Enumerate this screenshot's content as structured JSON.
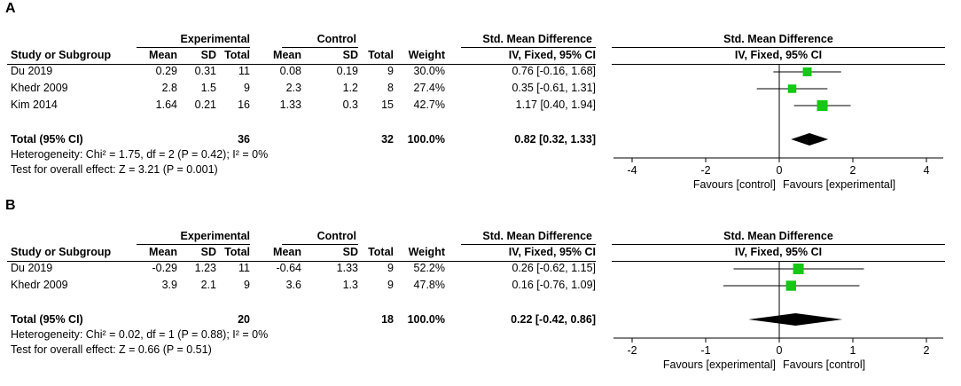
{
  "chart_data": [
    {
      "type": "forest",
      "panel_label": "A",
      "column_headers": {
        "experimental_group": "Experimental",
        "control_group": "Control",
        "effect_group": "Std. Mean Difference",
        "study": "Study or Subgroup",
        "mean_exp": "Mean",
        "sd_exp": "SD",
        "total_exp": "Total",
        "mean_ctl": "Mean",
        "sd_ctl": "SD",
        "total_ctl": "Total",
        "weight": "Weight",
        "method": "IV, Fixed, 95% CI"
      },
      "plot_header": {
        "title": "Std. Mean Difference",
        "method": "IV, Fixed, 95% CI"
      },
      "studies": [
        {
          "name": "Du 2019",
          "mean_exp": "0.29",
          "sd_exp": "0.31",
          "total_exp": "11",
          "mean_ctl": "0.08",
          "sd_ctl": "0.19",
          "total_ctl": "9",
          "weight": "30.0%",
          "ci_text": "0.76 [-0.16, 1.68]",
          "est": 0.76,
          "lo": -0.16,
          "hi": 1.68,
          "w": 30.0
        },
        {
          "name": "Khedr 2009",
          "mean_exp": "2.8",
          "sd_exp": "1.5",
          "total_exp": "9",
          "mean_ctl": "2.3",
          "sd_ctl": "1.2",
          "total_ctl": "8",
          "weight": "27.4%",
          "ci_text": "0.35 [-0.61, 1.31]",
          "est": 0.35,
          "lo": -0.61,
          "hi": 1.31,
          "w": 27.4
        },
        {
          "name": "Kim 2014",
          "mean_exp": "1.64",
          "sd_exp": "0.21",
          "total_exp": "16",
          "mean_ctl": "1.33",
          "sd_ctl": "0.3",
          "total_ctl": "15",
          "weight": "42.7%",
          "ci_text": "1.17 [0.40, 1.94]",
          "est": 1.17,
          "lo": 0.4,
          "hi": 1.94,
          "w": 42.7
        }
      ],
      "total": {
        "label": "Total (95% CI)",
        "total_exp": "36",
        "total_ctl": "32",
        "weight": "100.0%",
        "ci_text": "0.82 [0.32, 1.33]",
        "est": 0.82,
        "lo": 0.32,
        "hi": 1.33
      },
      "heterogeneity": "Heterogeneity: Chi² = 1.75, df = 2 (P = 0.42); I² = 0%",
      "overall_effect": "Test for overall effect: Z = 3.21 (P = 0.001)",
      "axis": {
        "min": -4,
        "max": 4,
        "ticks": [
          -4,
          -2,
          0,
          2,
          4
        ],
        "tick_labels": [
          "-4",
          "-2",
          "0",
          "2",
          "4"
        ],
        "favours_left": "Favours [control]",
        "favours_right": "Favours [experimental]"
      }
    },
    {
      "type": "forest",
      "panel_label": "B",
      "column_headers": {
        "experimental_group": "Experimental",
        "control_group": "Control",
        "effect_group": "Std. Mean Difference",
        "study": "Study or Subgroup",
        "mean_exp": "Mean",
        "sd_exp": "SD",
        "total_exp": "Total",
        "mean_ctl": "Mean",
        "sd_ctl": "SD",
        "total_ctl": "Total",
        "weight": "Weight",
        "method": "IV, Fixed, 95% CI"
      },
      "plot_header": {
        "title": "Std. Mean Difference",
        "method": "IV, Fixed, 95% CI"
      },
      "studies": [
        {
          "name": "Du 2019",
          "mean_exp": "-0.29",
          "sd_exp": "1.23",
          "total_exp": "11",
          "mean_ctl": "-0.64",
          "sd_ctl": "1.33",
          "total_ctl": "9",
          "weight": "52.2%",
          "ci_text": "0.26 [-0.62, 1.15]",
          "est": 0.26,
          "lo": -0.62,
          "hi": 1.15,
          "w": 52.2
        },
        {
          "name": "Khedr 2009",
          "mean_exp": "3.9",
          "sd_exp": "2.1",
          "total_exp": "9",
          "mean_ctl": "3.6",
          "sd_ctl": "1.3",
          "total_ctl": "9",
          "weight": "47.8%",
          "ci_text": "0.16 [-0.76, 1.09]",
          "est": 0.16,
          "lo": -0.76,
          "hi": 1.09,
          "w": 47.8
        }
      ],
      "total": {
        "label": "Total (95% CI)",
        "total_exp": "20",
        "total_ctl": "18",
        "weight": "100.0%",
        "ci_text": "0.22 [-0.42, 0.86]",
        "est": 0.22,
        "lo": -0.42,
        "hi": 0.86
      },
      "heterogeneity": "Heterogeneity: Chi² = 0.02, df = 1 (P = 0.88); I² = 0%",
      "overall_effect": "Test for overall effect: Z = 0.66 (P = 0.51)",
      "axis": {
        "min": -2,
        "max": 2,
        "ticks": [
          -2,
          -1,
          0,
          1,
          2
        ],
        "tick_labels": [
          "-2",
          "-1",
          "0",
          "1",
          "2"
        ],
        "favours_left": "Favours [experimental]",
        "favours_right": "Favours [control]"
      }
    }
  ]
}
